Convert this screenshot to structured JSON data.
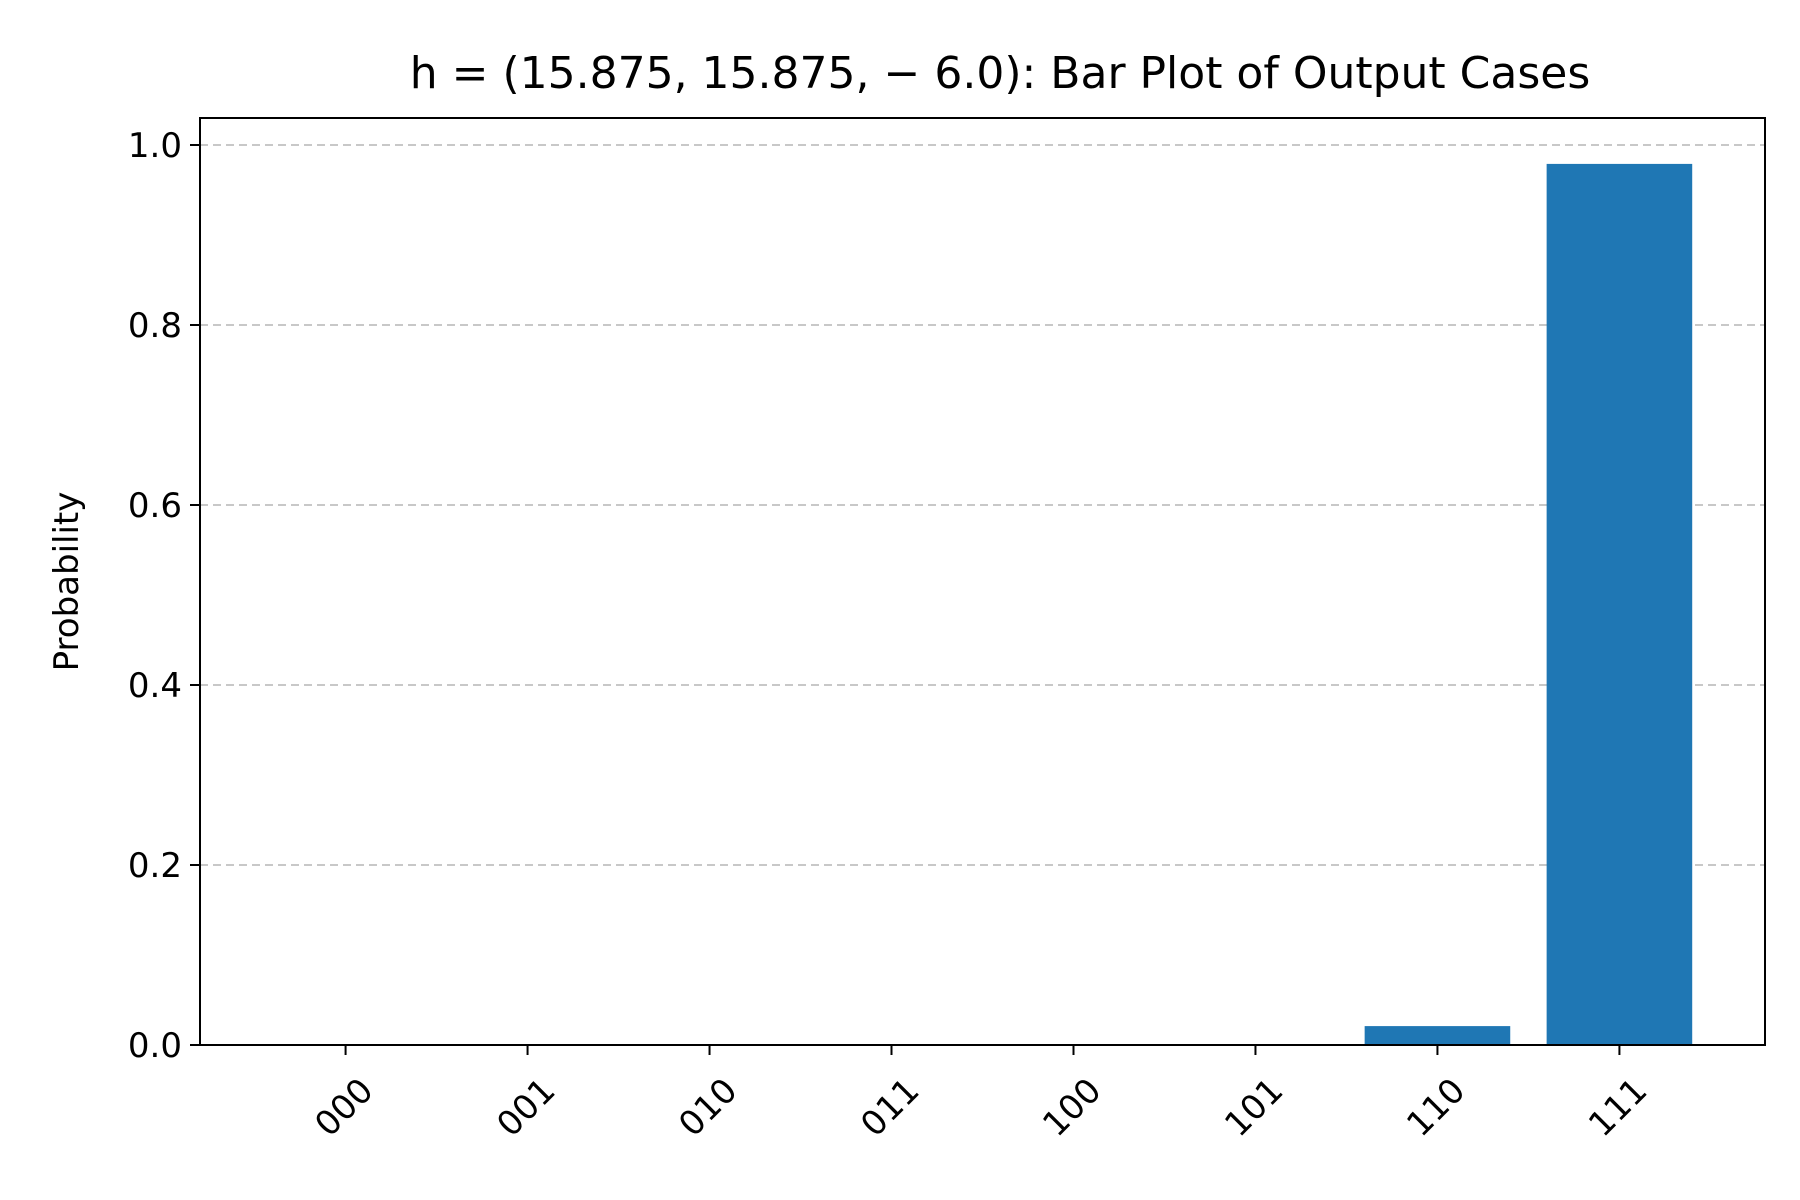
{
  "chart_data": {
    "type": "bar",
    "title": "h = (15.875, 15.875, − 6.0): Bar Plot of Output Cases",
    "xlabel": "",
    "ylabel": "Probability",
    "categories": [
      "000",
      "001",
      "010",
      "011",
      "100",
      "101",
      "110",
      "111"
    ],
    "values": [
      0.0,
      0.0,
      0.0,
      0.0,
      0.0,
      0.0,
      0.021,
      0.979
    ],
    "ylim": [
      0,
      1.03
    ],
    "yticks": [
      0.0,
      0.2,
      0.4,
      0.6,
      0.8,
      1.0
    ],
    "ytick_labels": [
      "0.0",
      "0.2",
      "0.4",
      "0.6",
      "0.8",
      "1.0"
    ],
    "grid": "y-dashed",
    "bar_color": "#1f77b4",
    "grid_color": "#c8c8c8",
    "legend": "none"
  }
}
